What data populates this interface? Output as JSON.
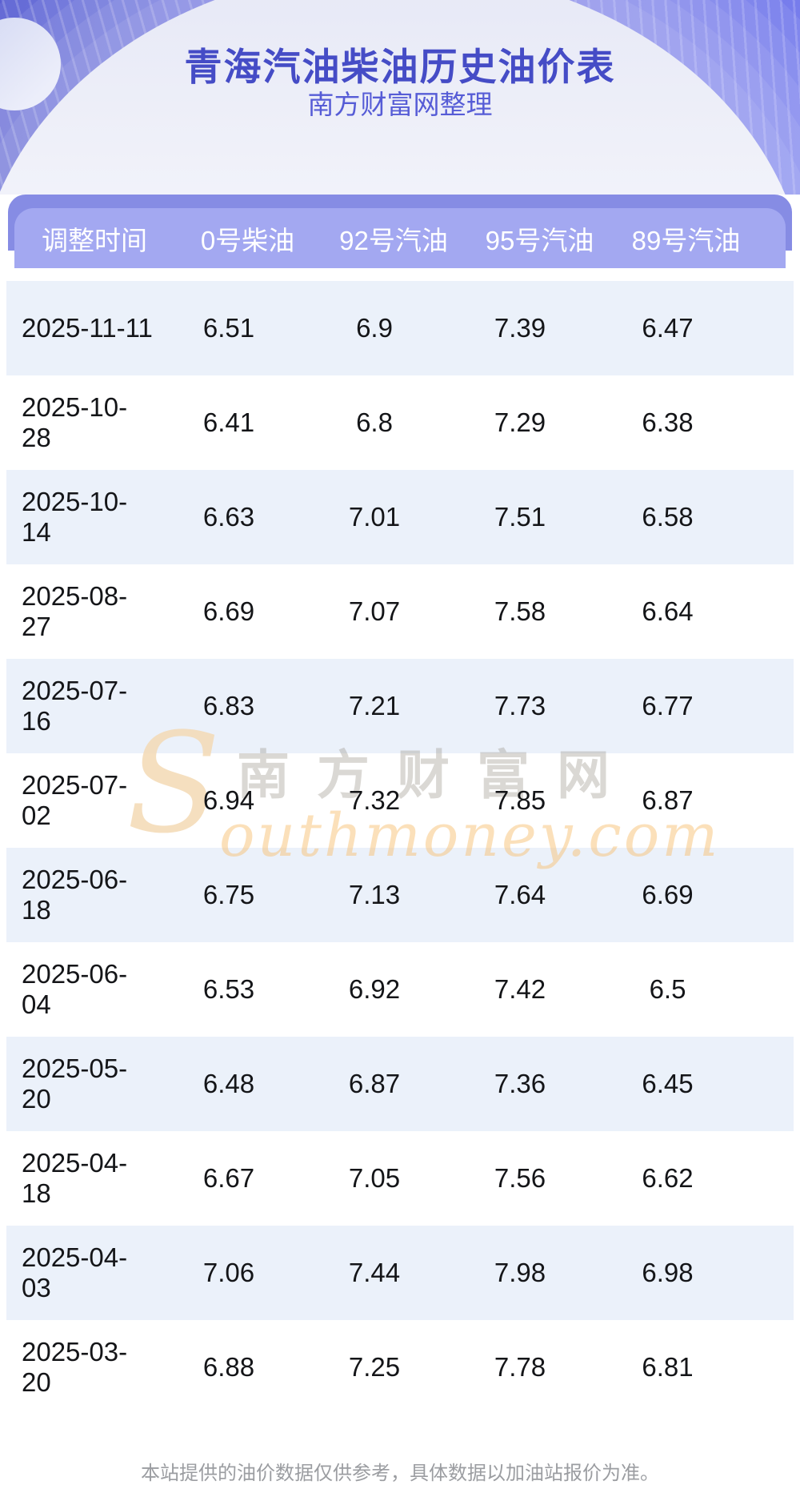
{
  "banner": {
    "title": "青海汽油柴油历史油价表",
    "subtitle": "南方财富网整理"
  },
  "table": {
    "columns": [
      "调整时间",
      "0号柴油",
      "92号汽油",
      "95号汽油",
      "89号汽油"
    ],
    "rows": [
      [
        "2025-11-11",
        "6.51",
        "6.9",
        "7.39",
        "6.47"
      ],
      [
        "2025-10-28",
        "6.41",
        "6.8",
        "7.29",
        "6.38"
      ],
      [
        "2025-10-14",
        "6.63",
        "7.01",
        "7.51",
        "6.58"
      ],
      [
        "2025-08-27",
        "6.69",
        "7.07",
        "7.58",
        "6.64"
      ],
      [
        "2025-07-16",
        "6.83",
        "7.21",
        "7.73",
        "6.77"
      ],
      [
        "2025-07-02",
        "6.94",
        "7.32",
        "7.85",
        "6.87"
      ],
      [
        "2025-06-18",
        "6.75",
        "7.13",
        "7.64",
        "6.69"
      ],
      [
        "2025-06-04",
        "6.53",
        "6.92",
        "7.42",
        "6.5"
      ],
      [
        "2025-05-20",
        "6.48",
        "6.87",
        "7.36",
        "6.45"
      ],
      [
        "2025-04-18",
        "6.67",
        "7.05",
        "7.56",
        "6.62"
      ],
      [
        "2025-04-03",
        "7.06",
        "7.44",
        "7.98",
        "6.98"
      ],
      [
        "2025-03-20",
        "6.88",
        "7.25",
        "7.78",
        "6.81"
      ]
    ]
  },
  "watermark": {
    "s": "S",
    "cn": "南方财富网",
    "en": "outhmoney.com"
  },
  "footer": {
    "disclaimer": "本站提供的油价数据仅供参考，具体数据以加油站报价为准。"
  },
  "colors": {
    "banner_purple": "#5f65e2",
    "title_blue": "#454cc6",
    "header_strip": "#868ce4",
    "header_band": "#a3a8f1",
    "row_alt_blue": "#ebf1fa",
    "watermark_tan": "#f3d9b4",
    "watermark_orange": "#f7c176"
  }
}
